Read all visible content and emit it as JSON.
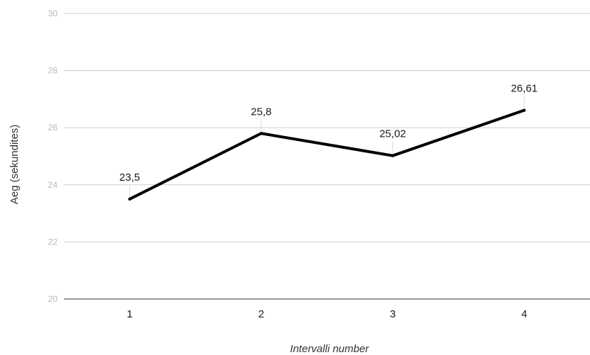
{
  "chart_data": {
    "type": "line",
    "categories": [
      "1",
      "2",
      "3",
      "4"
    ],
    "series": [
      {
        "values": [
          23.5,
          25.8,
          25.02,
          26.61
        ],
        "data_labels": [
          "23,5",
          "25,8",
          "25,02",
          "26,61"
        ],
        "color": "#000000"
      }
    ],
    "xlabel": "Intervalli number",
    "ylabel": "Aeg (sekundites)",
    "ylim": [
      20,
      30
    ],
    "yticks": [
      20,
      22,
      24,
      26,
      28,
      30
    ],
    "grid": true,
    "legend": "none"
  }
}
